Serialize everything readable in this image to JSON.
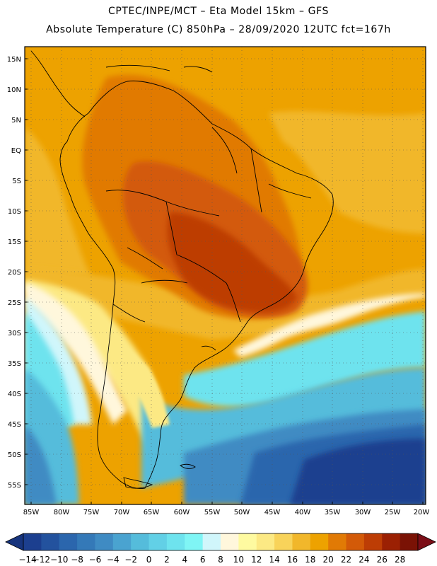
{
  "header": {
    "line1": "CPTEC/INPE/MCT –  Eta Model 15km – GFS",
    "line2": "Absolute Temperature (C) 850hPa – 28/09/2020 12UTC fct=167h"
  },
  "map": {
    "lat_labels": [
      "15N",
      "10N",
      "5N",
      "EQ",
      "5S",
      "10S",
      "15S",
      "20S",
      "25S",
      "30S",
      "35S",
      "40S",
      "45S",
      "50S",
      "55S"
    ],
    "lon_labels": [
      "85W",
      "80W",
      "75W",
      "70W",
      "65W",
      "60W",
      "55W",
      "50W",
      "45W",
      "40W",
      "35W",
      "30W",
      "25W",
      "20W"
    ]
  },
  "colorbar": {
    "labels": [
      "-14",
      "-12",
      "-10",
      "-8",
      "-6",
      "-4",
      "-2",
      "0",
      "2",
      "4",
      "6",
      "8",
      "10",
      "12",
      "14",
      "16",
      "18",
      "20",
      "22",
      "24",
      "26",
      "28"
    ],
    "colors": [
      "#1c3f8f",
      "#23529e",
      "#2b66ad",
      "#3479b8",
      "#3f8bc3",
      "#4aa3d0",
      "#55bcdb",
      "#62d0e6",
      "#6ee3ee",
      "#7ff5f5",
      "#d0f6fb",
      "#fff7dc",
      "#fefaa0",
      "#fce984",
      "#f8d35a",
      "#f1b72b",
      "#eda200",
      "#e17a05",
      "#d35a08",
      "#bd3d05",
      "#9b2003",
      "#7a1205"
    ],
    "low_arrow_color": "#17347d",
    "high_arrow_color": "#7b0e17"
  },
  "fields": {
    "ocean_south_deep": "#1c3f8f",
    "ocean_south": "#2b66ad",
    "ocean_mid": "#3f8bc3",
    "cold_band": "#55bcdb",
    "cold_light": "#7ff5f5",
    "pale": "#d0f6fb",
    "cream": "#fff7dc",
    "yellow": "#fce984",
    "gold": "#f1b72b",
    "orange_bg": "#eda200",
    "orange": "#e17a05",
    "dark_orange": "#d35a08",
    "hot": "#bd3d05",
    "coast": "#000000"
  }
}
